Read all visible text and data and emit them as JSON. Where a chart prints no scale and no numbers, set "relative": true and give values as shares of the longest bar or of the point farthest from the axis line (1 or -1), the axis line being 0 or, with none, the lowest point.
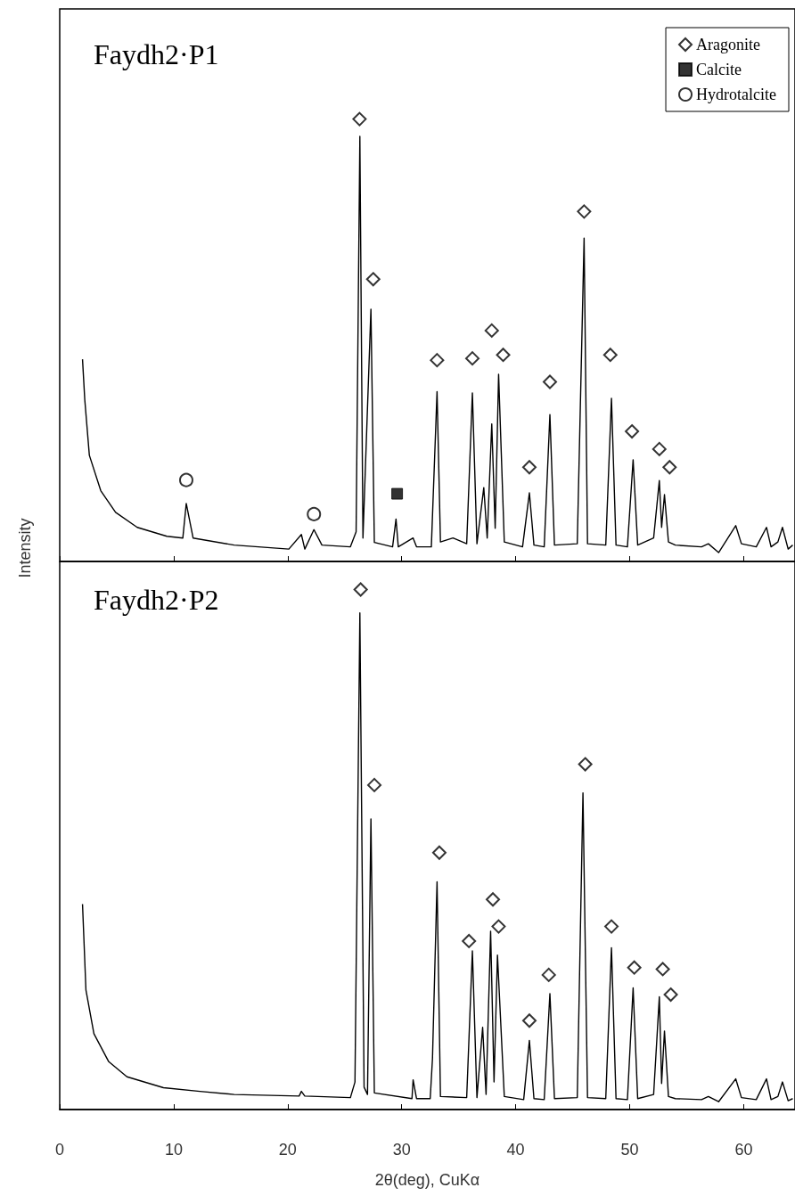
{
  "chart_data": [
    {
      "type": "line",
      "title": "Faydh2·P1",
      "ylabel": "Intensity",
      "relative": true,
      "xlim": [
        0,
        64.5
      ],
      "xticks": [
        0,
        10,
        20,
        30,
        40,
        50,
        60
      ],
      "tick_labels": false,
      "legend": "top right",
      "series": [
        {
          "color": "#000000",
          "x": [
            2.0,
            2.2,
            2.6,
            3.6,
            4.9,
            6.8,
            9.4,
            10.8,
            11.1,
            11.7,
            15.3,
            20.1,
            21.2,
            21.5,
            22.3,
            23.0,
            25.5,
            26.0,
            26.33,
            26.6,
            27.3,
            27.6,
            29.2,
            29.5,
            29.7,
            31.0,
            31.3,
            32.6,
            33.1,
            33.4,
            34.5,
            35.7,
            36.2,
            36.6,
            37.2,
            37.5,
            37.9,
            38.2,
            38.5,
            39.0,
            40.6,
            41.2,
            41.6,
            42.5,
            43.0,
            43.4,
            45.4,
            46.0,
            46.3,
            47.9,
            48.4,
            48.8,
            49.8,
            50.3,
            50.7,
            52.1,
            52.6,
            52.8,
            53.05,
            53.4,
            54.0,
            56.3,
            56.9,
            57.8,
            59.3,
            59.8,
            61.1,
            62.0,
            62.4,
            63.0,
            63.4,
            63.9,
            64.3
          ],
          "values": [
            0.457,
            0.365,
            0.24,
            0.16,
            0.111,
            0.077,
            0.057,
            0.053,
            0.131,
            0.053,
            0.037,
            0.028,
            0.061,
            0.028,
            0.072,
            0.037,
            0.033,
            0.067,
            0.961,
            0.053,
            0.57,
            0.043,
            0.033,
            0.096,
            0.033,
            0.053,
            0.033,
            0.033,
            0.384,
            0.044,
            0.053,
            0.04,
            0.381,
            0.04,
            0.167,
            0.053,
            0.311,
            0.075,
            0.423,
            0.044,
            0.033,
            0.155,
            0.037,
            0.033,
            0.332,
            0.037,
            0.04,
            0.731,
            0.04,
            0.037,
            0.369,
            0.037,
            0.033,
            0.23,
            0.037,
            0.053,
            0.183,
            0.077,
            0.151,
            0.044,
            0.037,
            0.033,
            0.04,
            0.02,
            0.081,
            0.04,
            0.033,
            0.077,
            0.033,
            0.044,
            0.077,
            0.028,
            0.037
          ]
        },
        {
          "type": "scatter",
          "name": "Aragonite",
          "marker": "diamond",
          "color": "#000000",
          "x": [
            26.3,
            27.5,
            33.1,
            36.2,
            37.9,
            38.9,
            41.2,
            43.0,
            46.0,
            48.3,
            50.2,
            52.6,
            53.5
          ],
          "values": [
            1.0,
            0.638,
            0.455,
            0.459,
            0.522,
            0.467,
            0.213,
            0.406,
            0.791,
            0.467,
            0.294,
            0.254,
            0.213
          ]
        },
        {
          "type": "scatter",
          "name": "Calcite",
          "marker": "square",
          "color": "#000000",
          "x": [
            29.6
          ],
          "values": [
            0.153
          ]
        },
        {
          "type": "scatter",
          "name": "Hydrotalcite",
          "marker": "circle",
          "color": "#000000",
          "x": [
            11.1,
            22.3
          ],
          "values": [
            0.184,
            0.107
          ]
        }
      ]
    },
    {
      "type": "line",
      "title": "Faydh2·P2",
      "xlabel": "2θ(deg), CuKα",
      "relative": true,
      "xlim": [
        0,
        64.5
      ],
      "xticks": [
        0,
        10,
        20,
        30,
        40,
        50,
        60
      ],
      "tick_labels": "x",
      "series": [
        {
          "color": "#000000",
          "x": [
            2.0,
            2.3,
            3.0,
            4.3,
            5.9,
            9.1,
            12.3,
            15.3,
            21.0,
            21.2,
            21.5,
            25.5,
            25.9,
            26.33,
            26.7,
            27.0,
            27.3,
            27.6,
            30.9,
            31.0,
            31.3,
            32.5,
            32.7,
            33.1,
            33.4,
            35.7,
            36.2,
            36.6,
            37.1,
            37.4,
            37.8,
            38.1,
            38.4,
            39.0,
            40.7,
            41.2,
            41.6,
            42.5,
            43.0,
            43.4,
            45.4,
            45.9,
            46.3,
            47.9,
            48.4,
            48.8,
            49.8,
            50.3,
            50.7,
            52.1,
            52.6,
            52.8,
            53.05,
            53.4,
            54.0,
            56.3,
            56.9,
            57.8,
            59.3,
            59.8,
            61.1,
            62.0,
            62.4,
            63.0,
            63.4,
            63.9,
            64.3
          ],
          "values": [
            0.395,
            0.23,
            0.146,
            0.092,
            0.063,
            0.042,
            0.035,
            0.029,
            0.026,
            0.035,
            0.026,
            0.023,
            0.053,
            0.955,
            0.043,
            0.029,
            0.559,
            0.032,
            0.021,
            0.057,
            0.021,
            0.021,
            0.098,
            0.438,
            0.025,
            0.023,
            0.305,
            0.023,
            0.158,
            0.029,
            0.343,
            0.053,
            0.297,
            0.025,
            0.019,
            0.133,
            0.021,
            0.019,
            0.223,
            0.021,
            0.023,
            0.609,
            0.023,
            0.021,
            0.311,
            0.021,
            0.019,
            0.234,
            0.021,
            0.029,
            0.217,
            0.05,
            0.151,
            0.025,
            0.021,
            0.019,
            0.025,
            0.015,
            0.059,
            0.023,
            0.019,
            0.059,
            0.019,
            0.025,
            0.053,
            0.017,
            0.021
          ]
        },
        {
          "type": "scatter",
          "marker": "diamond",
          "color": "#000000",
          "x": [
            26.4,
            27.6,
            33.3,
            35.9,
            38.0,
            38.5,
            41.2,
            42.9,
            46.1,
            48.4,
            50.4,
            52.9,
            53.6
          ],
          "values": [
            1.0,
            0.624,
            0.494,
            0.324,
            0.404,
            0.352,
            0.171,
            0.259,
            0.664,
            0.352,
            0.273,
            0.27,
            0.221
          ]
        }
      ]
    }
  ]
}
